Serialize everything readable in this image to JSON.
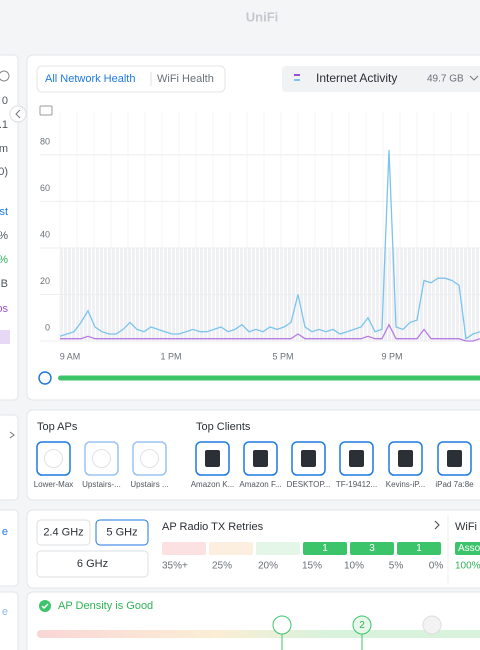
{
  "header": {
    "title": "UniFi"
  },
  "side_panel": {
    "fragments": [
      "0",
      ".1",
      "m",
      "0)",
      "st",
      "%",
      "%",
      "B",
      "os"
    ],
    "links": [
      "e",
      "e"
    ]
  },
  "tabs": [
    "All Network Health",
    "WiFi Health"
  ],
  "activity": {
    "label": "Internet Activity",
    "total": "49.7 GB"
  },
  "chart_data": {
    "type": "line",
    "x_labels": [
      "9 AM",
      "1 PM",
      "5 PM",
      "9 PM"
    ],
    "series": [
      {
        "color": "#7cc4ec",
        "values": [
          2,
          3,
          4,
          8,
          13,
          6,
          4,
          3,
          3,
          5,
          8,
          5,
          4,
          6,
          5,
          4,
          3,
          3,
          4,
          5,
          4,
          4,
          5,
          6,
          4,
          5,
          7,
          4,
          5,
          4,
          6,
          5,
          6,
          8,
          20,
          6,
          4,
          5,
          4,
          5,
          3,
          4,
          5,
          6,
          10,
          4,
          5,
          82,
          6,
          5,
          8,
          9,
          26,
          25,
          27,
          27,
          26,
          24,
          1,
          3,
          4
        ]
      },
      {
        "color": "#b77ee0",
        "values": [
          1,
          1,
          1,
          1,
          2,
          1,
          1,
          1,
          1,
          1,
          1,
          1,
          1,
          1,
          1,
          1,
          1,
          1,
          1,
          1,
          1,
          1,
          1,
          1,
          1,
          1,
          1,
          1,
          1,
          1,
          1,
          1,
          1,
          1,
          3,
          1,
          1,
          1,
          1,
          1,
          1,
          1,
          1,
          1,
          2,
          1,
          1,
          7,
          1,
          1,
          1,
          1,
          5,
          1,
          1,
          1,
          1,
          1,
          0,
          0,
          1
        ]
      }
    ],
    "ylim": [
      0,
      95
    ],
    "yticks": [
      0,
      20,
      40,
      60,
      80
    ],
    "grid": true
  },
  "top_aps": {
    "title": "Top APs",
    "items": [
      "Lower-Max",
      "Upstairs-...",
      "Upstairs ..."
    ]
  },
  "top_clients": {
    "title": "Top Clients",
    "items": [
      "Amazon K...",
      "Amazon F...",
      "DESKTOP...",
      "TF-19412...",
      "Kevins-iP...",
      "iPad 7a:8e"
    ]
  },
  "bands": [
    "2.4 GHz",
    "5 GHz",
    "6 GHz"
  ],
  "retries": {
    "title": "AP Radio TX Retries",
    "counts": [
      null,
      null,
      null,
      1,
      3,
      1
    ],
    "scale": [
      "35%+",
      "25%",
      "20%",
      "15%",
      "10%",
      "5%",
      "0%"
    ]
  },
  "wifi": {
    "title": "WiFi C",
    "status": "Asso",
    "value": "100%"
  },
  "density": {
    "status": "AP Density is Good",
    "marker": "2"
  }
}
